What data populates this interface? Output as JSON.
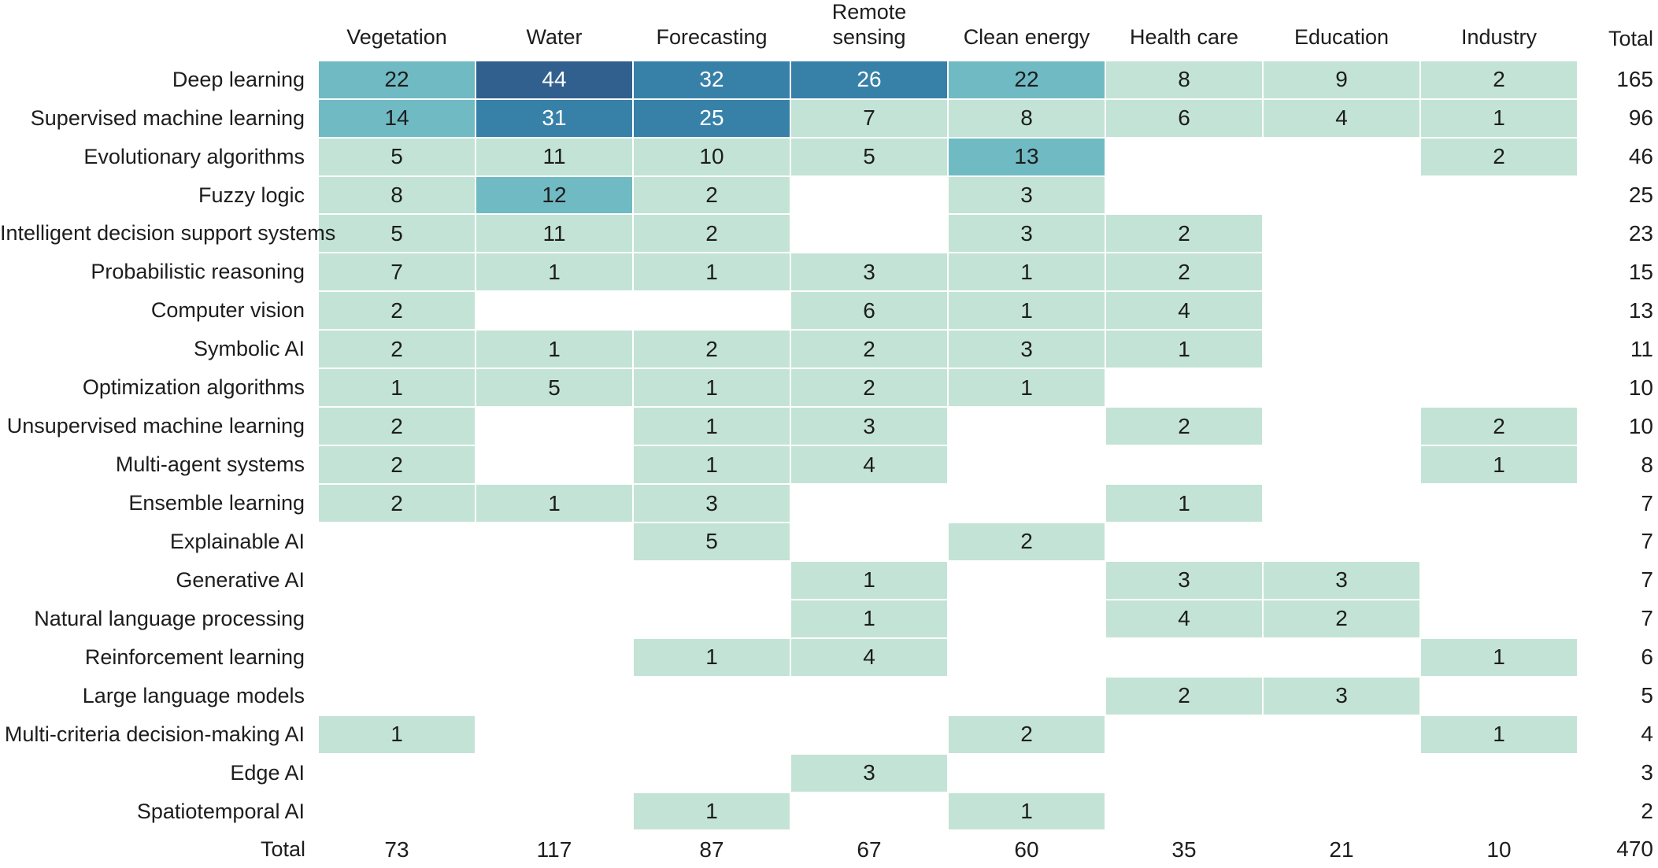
{
  "chart_data": {
    "type": "heatmap",
    "title": "",
    "total_label": "Total",
    "columns": [
      "Vegetation",
      "Water",
      "Forecasting",
      "Remote sensing",
      "Clean energy",
      "Health care",
      "Education",
      "Industry"
    ],
    "rows": [
      {
        "label": "Deep learning",
        "values": [
          22,
          44,
          32,
          26,
          22,
          8,
          9,
          2
        ],
        "total": 165
      },
      {
        "label": "Supervised machine learning",
        "values": [
          14,
          31,
          25,
          7,
          8,
          6,
          4,
          1
        ],
        "total": 96
      },
      {
        "label": "Evolutionary algorithms",
        "values": [
          5,
          11,
          10,
          5,
          13,
          null,
          null,
          2
        ],
        "total": 46
      },
      {
        "label": "Fuzzy logic",
        "values": [
          8,
          12,
          2,
          null,
          3,
          null,
          null,
          null
        ],
        "total": 25
      },
      {
        "label": "Intelligent decision support systems",
        "values": [
          5,
          11,
          2,
          null,
          3,
          2,
          null,
          null
        ],
        "total": 23
      },
      {
        "label": "Probabilistic reasoning",
        "values": [
          7,
          1,
          1,
          3,
          1,
          2,
          null,
          null
        ],
        "total": 15
      },
      {
        "label": "Computer vision",
        "values": [
          2,
          null,
          null,
          6,
          1,
          4,
          null,
          null
        ],
        "total": 13
      },
      {
        "label": "Symbolic AI",
        "values": [
          2,
          1,
          2,
          2,
          3,
          1,
          null,
          null
        ],
        "total": 11
      },
      {
        "label": "Optimization algorithms",
        "values": [
          1,
          5,
          1,
          2,
          1,
          null,
          null,
          null
        ],
        "total": 10
      },
      {
        "label": "Unsupervised machine learning",
        "values": [
          2,
          null,
          1,
          3,
          null,
          2,
          null,
          2
        ],
        "total": 10
      },
      {
        "label": "Multi-agent systems",
        "values": [
          2,
          null,
          1,
          4,
          null,
          null,
          null,
          1
        ],
        "total": 8
      },
      {
        "label": "Ensemble learning",
        "values": [
          2,
          1,
          3,
          null,
          null,
          1,
          null,
          null
        ],
        "total": 7
      },
      {
        "label": "Explainable AI",
        "values": [
          null,
          null,
          5,
          null,
          2,
          null,
          null,
          null
        ],
        "total": 7
      },
      {
        "label": "Generative AI",
        "values": [
          null,
          null,
          null,
          1,
          null,
          3,
          3,
          null
        ],
        "total": 7
      },
      {
        "label": "Natural language processing",
        "values": [
          null,
          null,
          null,
          1,
          null,
          4,
          2,
          null
        ],
        "total": 7
      },
      {
        "label": "Reinforcement learning",
        "values": [
          null,
          null,
          1,
          4,
          null,
          null,
          null,
          1
        ],
        "total": 6
      },
      {
        "label": "Large language models",
        "values": [
          null,
          null,
          null,
          null,
          null,
          2,
          3,
          null
        ],
        "total": 5
      },
      {
        "label": "Multi-criteria decision-making AI",
        "values": [
          1,
          null,
          null,
          null,
          2,
          null,
          null,
          1
        ],
        "total": 4
      },
      {
        "label": "Edge AI",
        "values": [
          null,
          null,
          null,
          3,
          null,
          null,
          null,
          null
        ],
        "total": 3
      },
      {
        "label": "Spatiotemporal AI",
        "values": [
          null,
          null,
          1,
          null,
          1,
          null,
          null,
          null
        ],
        "total": 2
      }
    ],
    "totals_row_label": "Total",
    "column_totals": [
      73,
      117,
      87,
      67,
      60,
      35,
      21,
      10
    ],
    "grand_total": 470,
    "color_scale": {
      "empty_bg": "#ffffff",
      "stops": [
        {
          "min": 1,
          "bg": "#c3e3d6",
          "text": "#1d1d1d"
        },
        {
          "min": 12,
          "bg": "#70bac3",
          "text": "#1d1d1d"
        },
        {
          "min": 23,
          "bg": "#3781a9",
          "text": "#ffffff"
        },
        {
          "min": 40,
          "bg": "#32608e",
          "text": "#ffffff"
        }
      ]
    },
    "layout_hints": {
      "grid": "2px white gaps between cells",
      "row_labels": "right-aligned",
      "cell_values": "centered",
      "total_column": "right-aligned, no fill",
      "legend": "none"
    }
  }
}
